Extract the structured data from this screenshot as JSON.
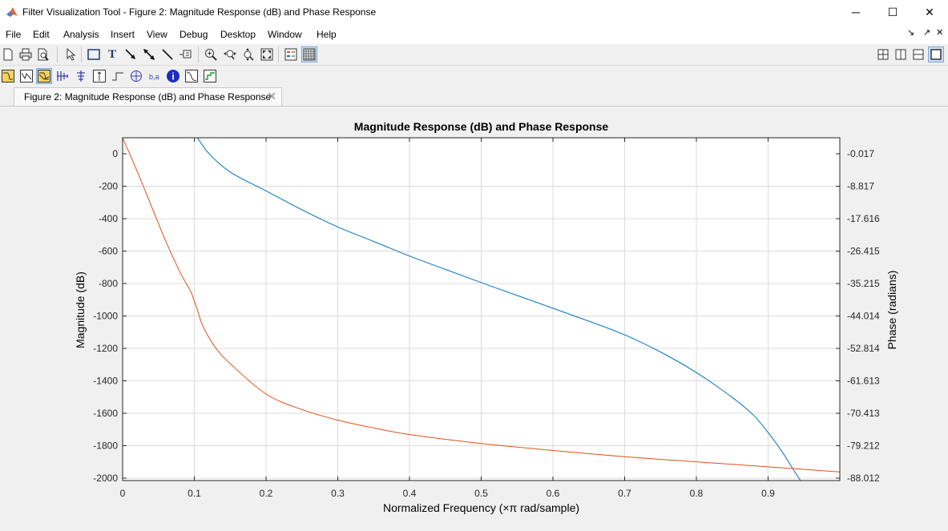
{
  "window": {
    "title": "Filter Visualization Tool - Figure 2: Magnitude Response (dB) and Phase Response",
    "minimize": "─",
    "maximize": "☐",
    "close": "✕"
  },
  "menu": [
    "File",
    "Edit",
    "Analysis",
    "Insert",
    "View",
    "Debug",
    "Desktop",
    "Window",
    "Help"
  ],
  "menu_right": {
    "dock": "↘",
    "undock": "↗",
    "close": "✕"
  },
  "toolbar1_icons": [
    "new-figure-icon",
    "print-icon",
    "print-preview-icon",
    "pointer-icon",
    "rectangle-icon",
    "insert-text-icon",
    "arrow-icon",
    "double-arrow-icon",
    "line-icon",
    "legend-pin-icon",
    "zoom-in-icon",
    "zoom-x-icon",
    "zoom-y-icon",
    "full-view-icon",
    "legend-icon",
    "grid-icon"
  ],
  "toolbar1_right_icons": [
    "tile-icon",
    "split-left-right-icon",
    "split-top-bottom-icon",
    "maximize-pane-icon"
  ],
  "toolbar2_icons": [
    "magnitude-response-icon",
    "phase-response-icon",
    "magnitude-phase-icon",
    "group-delay-icon",
    "phase-delay-icon",
    "impulse-response-icon",
    "step-response-icon",
    "pole-zero-icon",
    "filter-coefficients-icon",
    "filter-information-icon",
    "magnitude-estimate-icon",
    "round-off-noise-icon"
  ],
  "tab": {
    "label": "Figure 2: Magnitude Response (dB) and Phase Response",
    "close": "✕"
  },
  "chart_data": {
    "type": "line",
    "title": "Magnitude Response (dB) and Phase Response",
    "xlabel": "Normalized Frequency (×π rad/sample)",
    "ylabel": "Magnitude (dB)",
    "y2label": "Phase (radians)",
    "xlim": [
      0,
      1
    ],
    "ylim": [
      -2000,
      0
    ],
    "y2lim": [
      -88.012,
      -0.017
    ],
    "grid": true,
    "xticks": [
      "0",
      "0.1",
      "0.2",
      "0.3",
      "0.4",
      "0.5",
      "0.6",
      "0.7",
      "0.8",
      "0.9"
    ],
    "yticks": [
      "0",
      "-200",
      "-400",
      "-600",
      "-800",
      "-1000",
      "-1200",
      "-1400",
      "-1600",
      "-1800",
      "-2000"
    ],
    "y2ticks": [
      "-0.017",
      "-8.817",
      "-17.616",
      "-26.415",
      "-35.215",
      "-44.014",
      "-52.814",
      "-61.613",
      "-70.413",
      "-79.212",
      "-88.012"
    ],
    "series": [
      {
        "axis": "left",
        "color": "#0072bd",
        "x": [
          0,
          0.05,
          0.1,
          0.104,
          0.12,
          0.15,
          0.2,
          0.25,
          0.3,
          0.35,
          0.4,
          0.45,
          0.5,
          0.55,
          0.6,
          0.65,
          0.7,
          0.75,
          0.8,
          0.85,
          0.88,
          0.9,
          0.92,
          0.935,
          0.95
        ],
        "y": [
          0,
          0,
          0,
          0,
          -90,
          -200,
          -310,
          -420,
          -520,
          -605,
          -690,
          -768,
          -845,
          -920,
          -995,
          -1070,
          -1150,
          -1250,
          -1370,
          -1515,
          -1620,
          -1720,
          -1835,
          -1935,
          -2030
        ]
      },
      {
        "axis": "right",
        "color": "#d95319",
        "x": [
          0,
          0.02,
          0.04,
          0.06,
          0.08,
          0.095,
          0.1,
          0.104,
          0.108,
          0.115,
          0.13,
          0.15,
          0.2,
          0.25,
          0.3,
          0.35,
          0.4,
          0.5,
          0.6,
          0.7,
          0.8,
          0.9,
          1.0
        ],
        "y": [
          -0.017,
          -8.5,
          -17.5,
          -26.5,
          -34.5,
          -39.5,
          -42.0,
          -44.0,
          -46.5,
          -49.5,
          -54.0,
          -58.0,
          -65.8,
          -69.8,
          -72.5,
          -74.5,
          -76.2,
          -78.5,
          -80.3,
          -81.9,
          -83.2,
          -84.5,
          -85.8
        ]
      }
    ]
  }
}
